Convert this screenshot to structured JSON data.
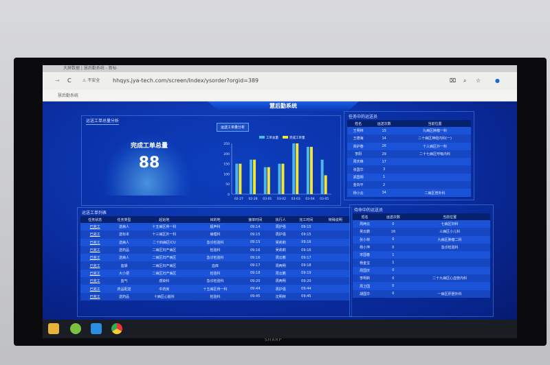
{
  "browser": {
    "tab_title": "大屏数据 | 慧后勤系统 - 新标",
    "insecure_label": "不安全",
    "url": "hhqys.jya-tech.com/screen/Index/ysorder?orgid=389",
    "bookmark": "慧后勤系统"
  },
  "dashboard": {
    "title": "慧后勤系统"
  },
  "summary": {
    "panel_title": "运送工单总量分析",
    "label": "完成工单总量",
    "value": "88",
    "chart_button": "运送工单量分析"
  },
  "chart_data": {
    "type": "bar",
    "categories": [
      "02-27",
      "02-28",
      "03-01",
      "03-02",
      "03-03",
      "03-04",
      "03-05"
    ],
    "series": [
      {
        "name": "工单总量",
        "color": "#4fb6e8",
        "values": [
          150,
          170,
          133,
          150,
          250,
          233,
          170
        ]
      },
      {
        "name": "完成工单量",
        "color": "#f2e53a",
        "values": [
          150,
          170,
          133,
          150,
          250,
          233,
          93
        ]
      }
    ],
    "yticks": [
      0,
      50,
      100,
      150,
      200,
      250
    ],
    "ylim": [
      0,
      250
    ],
    "legend": "top"
  },
  "staff": {
    "panel_title": "任务中的运送员",
    "headers": [
      "姓名",
      "运送次数",
      "当前位置"
    ],
    "rows": [
      [
        "王明林",
        "15",
        "九病区肿瘤一科"
      ],
      [
        "王德海",
        "14",
        "二十病区神经内科(一)"
      ],
      [
        "高护春",
        "26",
        "十三病区外一科"
      ],
      [
        "李阳",
        "29",
        "二十七病区呼吸内科"
      ],
      [
        "周庆峰",
        "17",
        ""
      ],
      [
        "张国华",
        "3",
        ""
      ],
      [
        "郑国明",
        "1",
        ""
      ],
      [
        "金向平",
        "2",
        ""
      ],
      [
        "杨小云",
        "34",
        "二病区普外科"
      ]
    ]
  },
  "orders": {
    "panel_title": "运送工单列表",
    "headers": [
      "任务状态",
      "任务类型",
      "起始地",
      "目的地",
      "接单时间",
      "执行人",
      "完工时间",
      "特殊说明"
    ],
    "rows": [
      [
        "已完工",
        "送病人",
        "十五病区骨一科",
        "超声科",
        "09:14",
        "周护强",
        "09:15",
        ""
      ],
      [
        "已完工",
        "送标本",
        "十三病区外一科",
        "病理科",
        "09:15",
        "周护强",
        "09:15",
        ""
      ],
      [
        "已完工",
        "送病人",
        "二十四病区ICU",
        "急诊检验科",
        "09:15",
        "吴莉莉",
        "09:16",
        ""
      ],
      [
        "已完工",
        "送药品",
        "二病区妇产病区",
        "检验科",
        "09:16",
        "吴莉莉",
        "09:16",
        ""
      ],
      [
        "已完工",
        "送病人",
        "二病区妇产病区",
        "急诊检验科",
        "09:16",
        "周云鹏",
        "09:17",
        ""
      ],
      [
        "已完工",
        "血袋",
        "二病区妇产病区",
        "血库",
        "09:17",
        "周两明",
        "09:18",
        ""
      ],
      [
        "已完工",
        "大小便",
        "二病区妇产病区",
        "检验科",
        "09:18",
        "周云鹏",
        "09:19",
        ""
      ],
      [
        "已完工",
        "血气",
        "感染科",
        "急诊检验科",
        "09:20",
        "周两明",
        "09:20",
        ""
      ],
      [
        "已完工",
        "药品配送",
        "中药房",
        "十五病区骨一科",
        "09:44",
        "周护强",
        "09:44",
        ""
      ],
      [
        "已完工",
        "送药品",
        "十病区心脏科",
        "检验科",
        "09:45",
        "沈明林",
        "09:45",
        ""
      ]
    ]
  },
  "idle": {
    "panel_title": "待命中的运送员",
    "headers": [
      "姓名",
      "运送次数",
      "当前位置"
    ],
    "rows": [
      [
        "周两云",
        "0",
        "七病区妇科"
      ],
      [
        "吴云鹏",
        "16",
        "三病区小儿科"
      ],
      [
        "张小林",
        "0",
        "九病区肿瘤二科"
      ],
      [
        "杨小萍",
        "0",
        "急诊检验科"
      ],
      [
        "宋国春",
        "1",
        ""
      ],
      [
        "杨金宝",
        "1",
        ""
      ],
      [
        "周国庆",
        "0",
        ""
      ],
      [
        "李明新",
        "0",
        "二十九病区心血管内科"
      ],
      [
        "周卫国",
        "0",
        ""
      ],
      [
        "胡国华",
        "0",
        "一病区肝胆外科"
      ]
    ]
  },
  "tv": {
    "brand": "SHARP"
  }
}
